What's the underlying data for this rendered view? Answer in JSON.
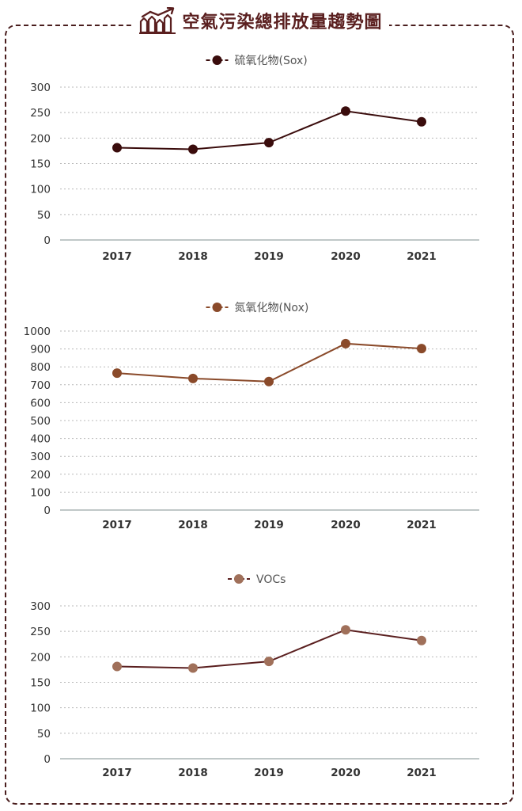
{
  "page": {
    "title": "空氣污染總排放量趨勢圖",
    "icon": "chart-trend-icon",
    "frame_color": "#4a1e1e",
    "title_color": "#5a1f1f"
  },
  "chart_data": [
    {
      "type": "line",
      "legend": "硫氧化物(Sox)",
      "color": "#3a0c0c",
      "x": [
        "2017",
        "2018",
        "2019",
        "2020",
        "2021"
      ],
      "values": [
        181,
        178,
        191,
        253,
        232
      ],
      "ylim": [
        0,
        300
      ],
      "yticks": [
        0,
        50,
        100,
        150,
        200,
        250,
        300
      ],
      "grid": true,
      "legend_position": "top-center"
    },
    {
      "type": "line",
      "legend": "氮氧化物(Nox)",
      "color": "#8a4a2a",
      "x": [
        "2017",
        "2018",
        "2019",
        "2020",
        "2021"
      ],
      "values": [
        765,
        735,
        718,
        930,
        902
      ],
      "ylim": [
        0,
        1000
      ],
      "yticks": [
        0,
        100,
        200,
        300,
        400,
        500,
        600,
        700,
        800,
        900,
        1000
      ],
      "grid": true,
      "legend_position": "top-center"
    },
    {
      "type": "line",
      "legend": "VOCs",
      "color": "#a0705a",
      "line_color": "#5a1f1f",
      "x": [
        "2017",
        "2018",
        "2019",
        "2020",
        "2021"
      ],
      "values": [
        181,
        178,
        191,
        253,
        232
      ],
      "ylim": [
        0,
        300
      ],
      "yticks": [
        0,
        50,
        100,
        150,
        200,
        250,
        300
      ],
      "grid": true,
      "legend_position": "top-center"
    }
  ]
}
